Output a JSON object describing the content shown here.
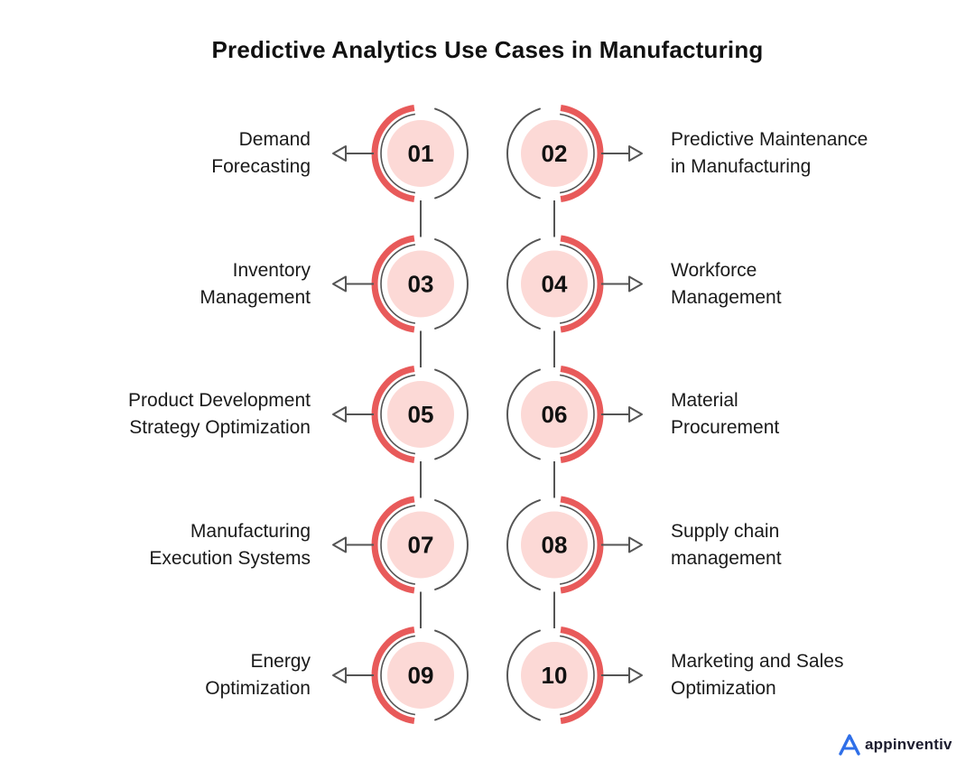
{
  "title": "Predictive Analytics Use Cases in Manufacturing",
  "brand": {
    "name": "appinventiv",
    "logo_icon": "triangle-a-logo-icon",
    "logo_color": "#2f6fe8"
  },
  "colors": {
    "accent_arc": "#e85a5a",
    "inner_circle": "#fcd9d6",
    "ring": "#555555",
    "connector": "#555555",
    "text": "#1a1a1a"
  },
  "nodes": [
    {
      "number": "01",
      "side": "left",
      "lines": [
        "Demand",
        "Forecasting"
      ]
    },
    {
      "number": "02",
      "side": "right",
      "lines": [
        "Predictive Maintenance",
        "in Manufacturing"
      ]
    },
    {
      "number": "03",
      "side": "left",
      "lines": [
        "Inventory",
        "Management"
      ]
    },
    {
      "number": "04",
      "side": "right",
      "lines": [
        "Workforce",
        "Management"
      ]
    },
    {
      "number": "05",
      "side": "left",
      "lines": [
        "Product Development",
        "Strategy Optimization"
      ]
    },
    {
      "number": "06",
      "side": "right",
      "lines": [
        "Material",
        "Procurement"
      ]
    },
    {
      "number": "07",
      "side": "left",
      "lines": [
        "Manufacturing",
        "Execution Systems"
      ]
    },
    {
      "number": "08",
      "side": "right",
      "lines": [
        "Supply chain",
        "management"
      ]
    },
    {
      "number": "09",
      "side": "left",
      "lines": [
        "Energy",
        "Optimization"
      ]
    },
    {
      "number": "10",
      "side": "right",
      "lines": [
        "Marketing and Sales",
        "Optimization"
      ]
    }
  ]
}
